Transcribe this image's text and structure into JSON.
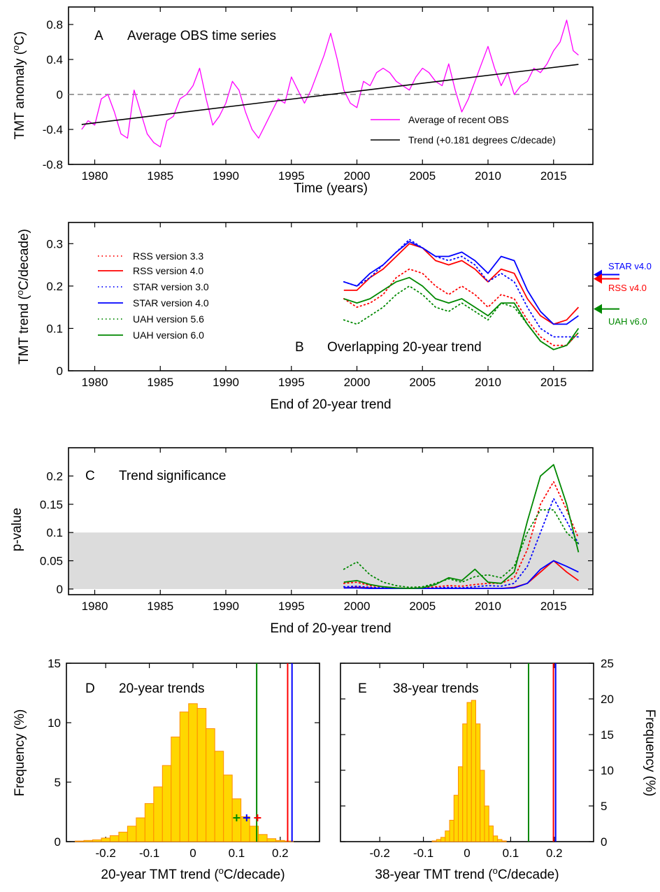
{
  "chart_data": [
    {
      "panel": "A",
      "type": "line",
      "title": "Average OBS time series",
      "xlabel": "Time (years)",
      "ylabel_main": "TMT anomaly (",
      "ylabel_sup": "o",
      "ylabel_end": "C)",
      "xlim": [
        1978,
        2018
      ],
      "ylim": [
        -0.8,
        1.0
      ],
      "xticks": [
        "1980",
        "1985",
        "1990",
        "1995",
        "2000",
        "2005",
        "2010",
        "2015"
      ],
      "yticks": [
        "-0.8",
        "-0.4",
        "0",
        "0.4",
        "0.8"
      ],
      "reference_line_y": 0,
      "legend_placement": "lower-right",
      "series": [
        {
          "name": "Average of recent OBS",
          "color": "#ff00ff",
          "style": "solid",
          "x": [
            1979.0,
            1979.5,
            1980.0,
            1980.5,
            1981.0,
            1981.5,
            1982.0,
            1982.5,
            1983.0,
            1983.5,
            1984.0,
            1984.5,
            1985.0,
            1985.5,
            1986.0,
            1986.5,
            1987.0,
            1987.5,
            1988.0,
            1988.5,
            1989.0,
            1989.5,
            1990.0,
            1990.5,
            1991.0,
            1991.5,
            1992.0,
            1992.5,
            1993.0,
            1993.5,
            1994.0,
            1994.5,
            1995.0,
            1995.5,
            1996.0,
            1996.5,
            1997.0,
            1997.5,
            1998.0,
            1998.5,
            1999.0,
            1999.5,
            2000.0,
            2000.5,
            2001.0,
            2001.5,
            2002.0,
            2002.5,
            2003.0,
            2003.5,
            2004.0,
            2004.5,
            2005.0,
            2005.5,
            2006.0,
            2006.5,
            2007.0,
            2007.5,
            2008.0,
            2008.5,
            2009.0,
            2009.5,
            2010.0,
            2010.5,
            2011.0,
            2011.5,
            2012.0,
            2012.5,
            2013.0,
            2013.5,
            2014.0,
            2014.5,
            2015.0,
            2015.5,
            2016.0,
            2016.5,
            2016.9
          ],
          "y": [
            -0.4,
            -0.3,
            -0.35,
            -0.05,
            0.0,
            -0.2,
            -0.45,
            -0.5,
            0.05,
            -0.2,
            -0.45,
            -0.55,
            -0.6,
            -0.3,
            -0.25,
            -0.05,
            0.0,
            0.1,
            0.3,
            -0.05,
            -0.35,
            -0.25,
            -0.1,
            0.15,
            0.05,
            -0.2,
            -0.4,
            -0.5,
            -0.35,
            -0.2,
            -0.05,
            -0.1,
            0.2,
            0.05,
            -0.1,
            0.05,
            0.25,
            0.45,
            0.7,
            0.4,
            0.05,
            -0.1,
            -0.15,
            0.15,
            0.1,
            0.25,
            0.3,
            0.25,
            0.15,
            0.1,
            0.05,
            0.2,
            0.3,
            0.25,
            0.15,
            0.1,
            0.35,
            0.05,
            -0.2,
            -0.05,
            0.15,
            0.35,
            0.55,
            0.3,
            0.1,
            0.25,
            0.0,
            0.1,
            0.15,
            0.3,
            0.25,
            0.35,
            0.5,
            0.6,
            0.85,
            0.5,
            0.45
          ]
        },
        {
          "name": "Trend (+0.181 degrees C/decade)",
          "color": "#000000",
          "style": "solid",
          "x": [
            1979.0,
            2016.9
          ],
          "y": [
            -0.343,
            0.343
          ]
        }
      ]
    },
    {
      "panel": "B",
      "type": "line",
      "title": "Overlapping 20-year trend",
      "xlabel": "End of 20-year trend",
      "ylabel_main": "TMT trend (",
      "ylabel_sup": "o",
      "ylabel_end": "C/decade)",
      "xlim": [
        1978,
        2018
      ],
      "ylim": [
        0,
        0.35
      ],
      "xticks": [
        "1980",
        "1985",
        "1990",
        "1995",
        "2000",
        "2005",
        "2010",
        "2015"
      ],
      "yticks": [
        "0",
        "0.1",
        "0.2",
        "0.3"
      ],
      "legend_placement": "upper-left",
      "x": [
        1999,
        2000,
        2001,
        2002,
        2003,
        2004,
        2005,
        2006,
        2007,
        2008,
        2009,
        2010,
        2011,
        2012,
        2013,
        2014,
        2015,
        2016,
        2016.9
      ],
      "series": [
        {
          "name": "RSS version 3.3",
          "color": "#ff0000",
          "style": "dotted",
          "y": [
            0.17,
            0.15,
            0.16,
            0.18,
            0.22,
            0.24,
            0.23,
            0.2,
            0.18,
            0.2,
            0.18,
            0.15,
            0.18,
            0.17,
            0.12,
            0.08,
            0.06,
            0.06,
            0.09
          ]
        },
        {
          "name": "RSS version 4.0",
          "color": "#ff0000",
          "style": "solid",
          "y": [
            0.19,
            0.19,
            0.22,
            0.24,
            0.27,
            0.3,
            0.29,
            0.26,
            0.25,
            0.26,
            0.24,
            0.21,
            0.24,
            0.23,
            0.17,
            0.13,
            0.11,
            0.12,
            0.15
          ]
        },
        {
          "name": "STAR version 3.0",
          "color": "#0000ff",
          "style": "dotted",
          "y": [
            0.21,
            0.2,
            0.22,
            0.25,
            0.28,
            0.31,
            0.29,
            0.27,
            0.26,
            0.27,
            0.25,
            0.21,
            0.23,
            0.21,
            0.15,
            0.1,
            0.08,
            0.08,
            0.08
          ]
        },
        {
          "name": "STAR version 4.0",
          "color": "#0000ff",
          "style": "solid",
          "y": [
            0.21,
            0.2,
            0.23,
            0.25,
            0.28,
            0.305,
            0.29,
            0.27,
            0.27,
            0.28,
            0.26,
            0.23,
            0.27,
            0.26,
            0.19,
            0.14,
            0.11,
            0.11,
            0.13
          ]
        },
        {
          "name": "UAH version 5.6",
          "color": "#008800",
          "style": "dotted",
          "y": [
            0.12,
            0.11,
            0.13,
            0.15,
            0.18,
            0.2,
            0.18,
            0.15,
            0.14,
            0.16,
            0.14,
            0.12,
            0.16,
            0.15,
            0.11,
            0.07,
            0.05,
            0.06,
            0.09
          ]
        },
        {
          "name": "UAH version 6.0",
          "color": "#008800",
          "style": "solid",
          "y": [
            0.17,
            0.16,
            0.17,
            0.19,
            0.21,
            0.22,
            0.2,
            0.17,
            0.16,
            0.17,
            0.15,
            0.13,
            0.16,
            0.16,
            0.11,
            0.07,
            0.05,
            0.06,
            0.1
          ]
        }
      ],
      "side_arrows": [
        {
          "label": "STAR v4.0",
          "color": "#0000ff",
          "value": 0.227
        },
        {
          "label": "RSS v4.0",
          "color": "#ff0000",
          "value": 0.217
        },
        {
          "label": "UAH v6.0",
          "color": "#008800",
          "value": 0.146
        }
      ]
    },
    {
      "panel": "C",
      "type": "line",
      "title": "Trend significance",
      "xlabel": "End of 20-year trend",
      "ylabel": "p-value",
      "xlim": [
        1978,
        2018
      ],
      "ylim": [
        -0.01,
        0.25
      ],
      "xticks": [
        "1980",
        "1985",
        "1990",
        "1995",
        "2000",
        "2005",
        "2010",
        "2015"
      ],
      "yticks": [
        "0",
        "0.05",
        "0.1",
        "0.15",
        "0.2"
      ],
      "shaded_band": [
        0,
        0.1
      ],
      "x": [
        1999,
        2000,
        2001,
        2002,
        2003,
        2004,
        2005,
        2006,
        2007,
        2008,
        2009,
        2010,
        2011,
        2012,
        2013,
        2014,
        2015,
        2016,
        2016.9
      ],
      "series": [
        {
          "name": "RSS version 3.3",
          "color": "#ff0000",
          "style": "dotted",
          "y": [
            0.01,
            0.012,
            0.006,
            0.004,
            0.002,
            0.001,
            0.002,
            0.004,
            0.006,
            0.005,
            0.008,
            0.01,
            0.01,
            0.02,
            0.07,
            0.15,
            0.19,
            0.14,
            0.09
          ]
        },
        {
          "name": "RSS version 4.0",
          "color": "#ff0000",
          "style": "solid",
          "y": [
            0.002,
            0.003,
            0.002,
            0.001,
            0.001,
            0.001,
            0.001,
            0.001,
            0.001,
            0.001,
            0.001,
            0.001,
            0.001,
            0.003,
            0.01,
            0.03,
            0.05,
            0.03,
            0.015
          ]
        },
        {
          "name": "STAR version 3.0",
          "color": "#0000ff",
          "style": "dotted",
          "y": [
            0.004,
            0.005,
            0.003,
            0.002,
            0.001,
            0.001,
            0.001,
            0.002,
            0.003,
            0.002,
            0.004,
            0.006,
            0.005,
            0.01,
            0.04,
            0.1,
            0.16,
            0.12,
            0.08
          ]
        },
        {
          "name": "STAR version 4.0",
          "color": "#0000ff",
          "style": "solid",
          "y": [
            0.002,
            0.002,
            0.001,
            0.001,
            0.001,
            0.001,
            0.001,
            0.001,
            0.001,
            0.001,
            0.001,
            0.001,
            0.001,
            0.002,
            0.01,
            0.035,
            0.05,
            0.04,
            0.03
          ]
        },
        {
          "name": "UAH version 5.6",
          "color": "#008800",
          "style": "dotted",
          "y": [
            0.035,
            0.048,
            0.025,
            0.012,
            0.006,
            0.003,
            0.004,
            0.01,
            0.018,
            0.012,
            0.022,
            0.025,
            0.02,
            0.04,
            0.1,
            0.14,
            0.14,
            0.1,
            0.08
          ]
        },
        {
          "name": "UAH version 6.0",
          "color": "#008800",
          "style": "solid",
          "y": [
            0.012,
            0.015,
            0.008,
            0.004,
            0.002,
            0.001,
            0.002,
            0.008,
            0.02,
            0.015,
            0.035,
            0.012,
            0.01,
            0.03,
            0.12,
            0.2,
            0.22,
            0.15,
            0.065
          ]
        }
      ]
    },
    {
      "panel": "D",
      "type": "bar",
      "title": "20-year trends",
      "xlabel_main": "20-year TMT trend (",
      "xlabel_sup": "o",
      "xlabel_end": "C/decade)",
      "ylabel": "Frequency (%)",
      "xlim": [
        -0.29,
        0.29
      ],
      "ylim": [
        0,
        15
      ],
      "xticks": [
        "-0.2",
        "-0.1",
        "0",
        "0.1",
        "0.2"
      ],
      "yticks": [
        "0",
        "5",
        "10",
        "15"
      ],
      "bin_width": 0.02,
      "bin_centers": [
        -0.26,
        -0.24,
        -0.22,
        -0.2,
        -0.18,
        -0.16,
        -0.14,
        -0.12,
        -0.1,
        -0.08,
        -0.06,
        -0.04,
        -0.02,
        0.0,
        0.02,
        0.04,
        0.06,
        0.08,
        0.1,
        0.12,
        0.14,
        0.16,
        0.18,
        0.2,
        0.22
      ],
      "values": [
        0.05,
        0.1,
        0.15,
        0.3,
        0.5,
        0.8,
        1.3,
        2.0,
        3.2,
        4.6,
        6.4,
        8.8,
        10.9,
        11.6,
        11.2,
        9.5,
        7.6,
        5.6,
        3.6,
        2.1,
        1.3,
        0.6,
        0.25,
        0.1,
        0.05
      ],
      "bar_fill": "#ffd700",
      "bar_edge": "#ff8c00",
      "vertical_lines": [
        {
          "color": "#008800",
          "x": 0.146
        },
        {
          "color": "#ff0000",
          "x": 0.217
        },
        {
          "color": "#0000ff",
          "x": 0.227
        }
      ],
      "markers": [
        {
          "color": "#008800",
          "x": 0.1,
          "y": 2
        },
        {
          "color": "#0000ff",
          "x": 0.123,
          "y": 2
        },
        {
          "color": "#ff0000",
          "x": 0.148,
          "y": 2
        }
      ]
    },
    {
      "panel": "E",
      "type": "bar",
      "title": "38-year trends",
      "xlabel_main": "38-year TMT trend (",
      "xlabel_sup": "o",
      "xlabel_end": "C/decade)",
      "ylabel": "Frequency (%)",
      "xlim": [
        -0.29,
        0.29
      ],
      "ylim": [
        0,
        25
      ],
      "xticks": [
        "-0.2",
        "-0.1",
        "0",
        "0.1",
        "0.2"
      ],
      "yticks": [
        "0",
        "5",
        "10",
        "15",
        "20",
        "25"
      ],
      "bin_width": 0.01,
      "bin_centers": [
        -0.075,
        -0.065,
        -0.055,
        -0.045,
        -0.035,
        -0.025,
        -0.015,
        -0.005,
        0.005,
        0.015,
        0.025,
        0.035,
        0.045,
        0.055,
        0.065,
        0.075,
        0.085
      ],
      "values": [
        0.1,
        0.3,
        0.6,
        1.5,
        3.0,
        6.5,
        10.5,
        16.5,
        19.5,
        19.8,
        16.5,
        10.0,
        5.0,
        2.2,
        0.8,
        0.3,
        0.1
      ],
      "bar_fill": "#ffd700",
      "bar_edge": "#ff8c00",
      "vertical_lines": [
        {
          "color": "#008800",
          "x": 0.141
        },
        {
          "color": "#ff0000",
          "x": 0.198
        },
        {
          "color": "#0000ff",
          "x": 0.203
        }
      ]
    }
  ]
}
